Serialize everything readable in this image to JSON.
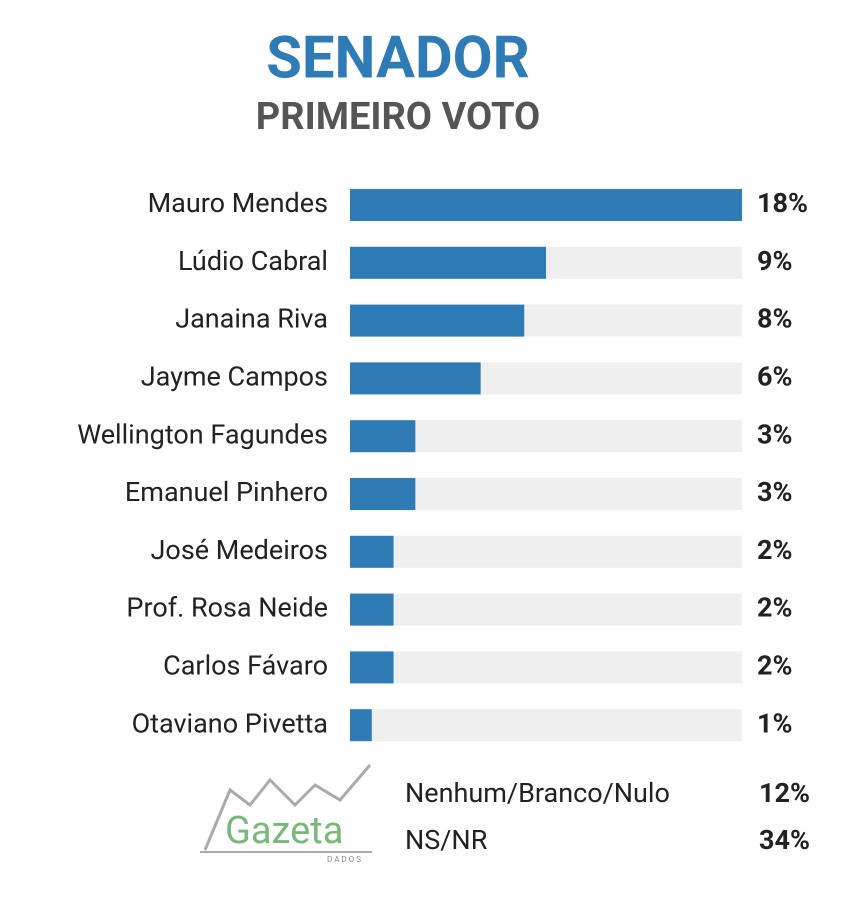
{
  "chart_data": {
    "type": "barh",
    "title": "SENADOR",
    "subtitle": "PRIMEIRO VOTO",
    "categories": [
      "Mauro Mendes",
      "Lúdio Cabral",
      "Janaina Riva",
      "Jayme Campos",
      "Wellington Fagundes",
      "Emanuel Pinhero",
      "José Medeiros",
      "Prof. Rosa Neide",
      "Carlos Fávaro",
      "Otaviano Pivetta"
    ],
    "values": [
      18,
      9,
      8,
      6,
      3,
      3,
      2,
      2,
      2,
      1
    ],
    "value_labels": [
      "18%",
      "9%",
      "8%",
      "6%",
      "3%",
      "3%",
      "2%",
      "2%",
      "2%",
      "1%"
    ],
    "color": "#2e7bb5",
    "track_color": "#efefef",
    "xlim": [
      0,
      18
    ],
    "others": [
      {
        "label": "Nenhum/Branco/Nulo",
        "value": 12,
        "value_label": "12%"
      },
      {
        "label": "NS/NR",
        "value": 34,
        "value_label": "34%"
      }
    ],
    "logo": {
      "name": "Gazeta",
      "sub": "DADOS"
    }
  }
}
